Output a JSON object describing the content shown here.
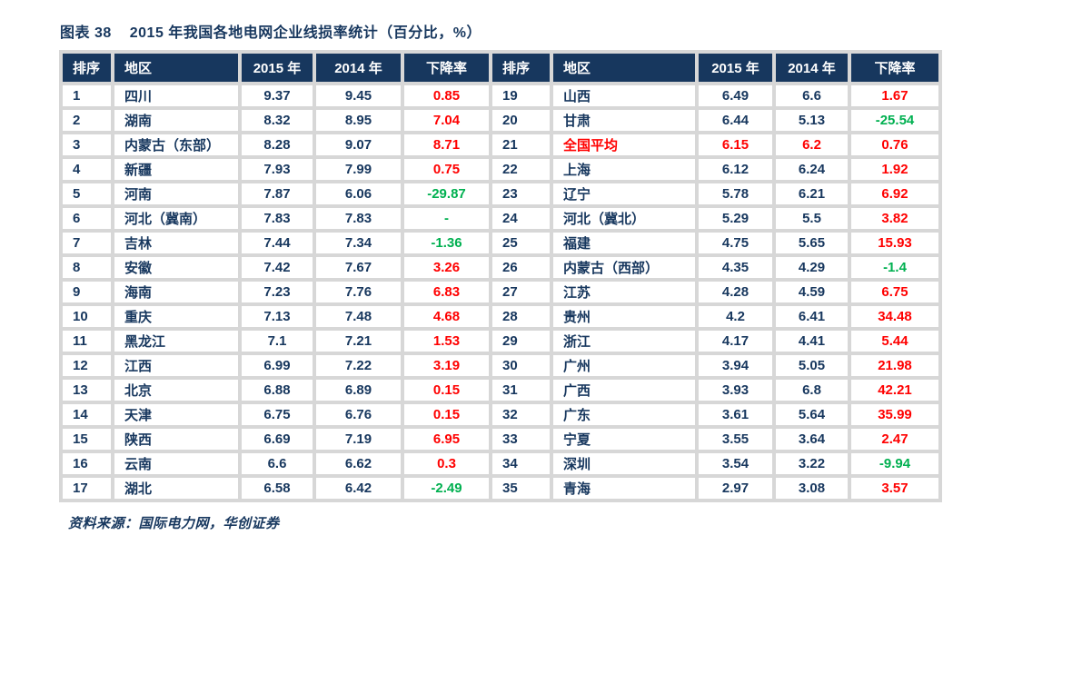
{
  "title": {
    "prefix": "图表 38",
    "text": "2015 年我国各地电网企业线损率统计（百分比，%）"
  },
  "columns": [
    "排序",
    "地区",
    "2015 年",
    "2014 年",
    "下降率"
  ],
  "rows_left": [
    {
      "rank": "1",
      "region": "四川",
      "y2015": "9.37",
      "y2014": "9.45",
      "decline": "0.85",
      "decline_color": "red",
      "highlight": false
    },
    {
      "rank": "2",
      "region": "湖南",
      "y2015": "8.32",
      "y2014": "8.95",
      "decline": "7.04",
      "decline_color": "red",
      "highlight": false
    },
    {
      "rank": "3",
      "region": "内蒙古（东部）",
      "y2015": "8.28",
      "y2014": "9.07",
      "decline": "8.71",
      "decline_color": "red",
      "highlight": false
    },
    {
      "rank": "4",
      "region": "新疆",
      "y2015": "7.93",
      "y2014": "7.99",
      "decline": "0.75",
      "decline_color": "red",
      "highlight": false
    },
    {
      "rank": "5",
      "region": "河南",
      "y2015": "7.87",
      "y2014": "6.06",
      "decline": "-29.87",
      "decline_color": "green",
      "highlight": false
    },
    {
      "rank": "6",
      "region": "河北（冀南）",
      "y2015": "7.83",
      "y2014": "7.83",
      "decline": "-",
      "decline_color": "green",
      "highlight": false
    },
    {
      "rank": "7",
      "region": "吉林",
      "y2015": "7.44",
      "y2014": "7.34",
      "decline": "-1.36",
      "decline_color": "green",
      "highlight": false
    },
    {
      "rank": "8",
      "region": "安徽",
      "y2015": "7.42",
      "y2014": "7.67",
      "decline": "3.26",
      "decline_color": "red",
      "highlight": false
    },
    {
      "rank": "9",
      "region": "海南",
      "y2015": "7.23",
      "y2014": "7.76",
      "decline": "6.83",
      "decline_color": "red",
      "highlight": false
    },
    {
      "rank": "10",
      "region": "重庆",
      "y2015": "7.13",
      "y2014": "7.48",
      "decline": "4.68",
      "decline_color": "red",
      "highlight": false
    },
    {
      "rank": "11",
      "region": "黑龙江",
      "y2015": "7.1",
      "y2014": "7.21",
      "decline": "1.53",
      "decline_color": "red",
      "highlight": false
    },
    {
      "rank": "12",
      "region": "江西",
      "y2015": "6.99",
      "y2014": "7.22",
      "decline": "3.19",
      "decline_color": "red",
      "highlight": false
    },
    {
      "rank": "13",
      "region": "北京",
      "y2015": "6.88",
      "y2014": "6.89",
      "decline": "0.15",
      "decline_color": "red",
      "highlight": false
    },
    {
      "rank": "14",
      "region": "天津",
      "y2015": "6.75",
      "y2014": "6.76",
      "decline": "0.15",
      "decline_color": "red",
      "highlight": false
    },
    {
      "rank": "15",
      "region": "陕西",
      "y2015": "6.69",
      "y2014": "7.19",
      "decline": "6.95",
      "decline_color": "red",
      "highlight": false
    },
    {
      "rank": "16",
      "region": "云南",
      "y2015": "6.6",
      "y2014": "6.62",
      "decline": "0.3",
      "decline_color": "red",
      "highlight": false
    },
    {
      "rank": "17",
      "region": "湖北",
      "y2015": "6.58",
      "y2014": "6.42",
      "decline": "-2.49",
      "decline_color": "green",
      "highlight": false
    }
  ],
  "rows_right": [
    {
      "rank": "19",
      "region": "山西",
      "y2015": "6.49",
      "y2014": "6.6",
      "decline": "1.67",
      "decline_color": "red",
      "highlight": false
    },
    {
      "rank": "20",
      "region": "甘肃",
      "y2015": "6.44",
      "y2014": "5.13",
      "decline": "-25.54",
      "decline_color": "green",
      "highlight": false
    },
    {
      "rank": "21",
      "region": "全国平均",
      "y2015": "6.15",
      "y2014": "6.2",
      "decline": "0.76",
      "decline_color": "red",
      "highlight": true
    },
    {
      "rank": "22",
      "region": "上海",
      "y2015": "6.12",
      "y2014": "6.24",
      "decline": "1.92",
      "decline_color": "red",
      "highlight": false
    },
    {
      "rank": "23",
      "region": "辽宁",
      "y2015": "5.78",
      "y2014": "6.21",
      "decline": "6.92",
      "decline_color": "red",
      "highlight": false
    },
    {
      "rank": "24",
      "region": "河北（冀北）",
      "y2015": "5.29",
      "y2014": "5.5",
      "decline": "3.82",
      "decline_color": "red",
      "highlight": false
    },
    {
      "rank": "25",
      "region": "福建",
      "y2015": "4.75",
      "y2014": "5.65",
      "decline": "15.93",
      "decline_color": "red",
      "highlight": false
    },
    {
      "rank": "26",
      "region": "内蒙古（西部）",
      "y2015": "4.35",
      "y2014": "4.29",
      "decline": "-1.4",
      "decline_color": "green",
      "highlight": false
    },
    {
      "rank": "27",
      "region": "江苏",
      "y2015": "4.28",
      "y2014": "4.59",
      "decline": "6.75",
      "decline_color": "red",
      "highlight": false
    },
    {
      "rank": "28",
      "region": "贵州",
      "y2015": "4.2",
      "y2014": "6.41",
      "decline": "34.48",
      "decline_color": "red",
      "highlight": false
    },
    {
      "rank": "29",
      "region": "浙江",
      "y2015": "4.17",
      "y2014": "4.41",
      "decline": "5.44",
      "decline_color": "red",
      "highlight": false
    },
    {
      "rank": "30",
      "region": "广州",
      "y2015": "3.94",
      "y2014": "5.05",
      "decline": "21.98",
      "decline_color": "red",
      "highlight": false
    },
    {
      "rank": "31",
      "region": "广西",
      "y2015": "3.93",
      "y2014": "6.8",
      "decline": "42.21",
      "decline_color": "red",
      "highlight": false
    },
    {
      "rank": "32",
      "region": "广东",
      "y2015": "3.61",
      "y2014": "5.64",
      "decline": "35.99",
      "decline_color": "red",
      "highlight": false
    },
    {
      "rank": "33",
      "region": "宁夏",
      "y2015": "3.55",
      "y2014": "3.64",
      "decline": "2.47",
      "decline_color": "red",
      "highlight": false
    },
    {
      "rank": "34",
      "region": "深圳",
      "y2015": "3.54",
      "y2014": "3.22",
      "decline": "-9.94",
      "decline_color": "green",
      "highlight": false
    },
    {
      "rank": "35",
      "region": "青海",
      "y2015": "2.97",
      "y2014": "3.08",
      "decline": "3.57",
      "decline_color": "red",
      "highlight": false
    }
  ],
  "source": "资料来源：国际电力网，华创证券",
  "colors": {
    "navy": "#17375E",
    "header_bg": "#17375E",
    "header_text": "#FFFFFF",
    "red": "#FF0000",
    "green": "#00B050",
    "grid": "#D7D7D7",
    "background": "#FFFFFF"
  }
}
